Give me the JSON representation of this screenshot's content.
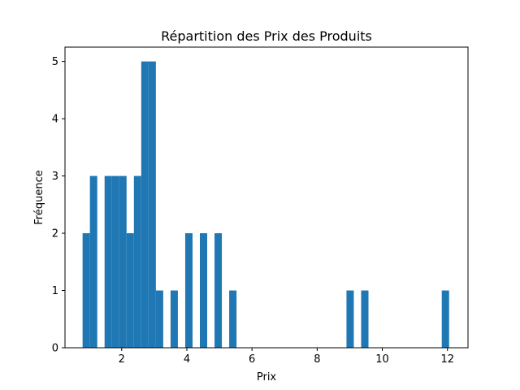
{
  "chart_data": {
    "type": "bar",
    "title": "Répartition des Prix des Produits",
    "xlabel": "Prix",
    "ylabel": "Fréquence",
    "xlim": [
      0.26,
      12.63
    ],
    "ylim": [
      0,
      5.25
    ],
    "x_ticks": [
      2,
      4,
      6,
      8,
      10,
      12
    ],
    "y_ticks": [
      0,
      1,
      2,
      3,
      4,
      5
    ],
    "bin_width": 0.225,
    "bar_color": "#1f77b4",
    "grid": false,
    "bins": [
      {
        "x": 0.8,
        "count": 2
      },
      {
        "x": 1.025,
        "count": 3
      },
      {
        "x": 1.25,
        "count": 0
      },
      {
        "x": 1.475,
        "count": 3
      },
      {
        "x": 1.7,
        "count": 3
      },
      {
        "x": 1.925,
        "count": 3
      },
      {
        "x": 2.15,
        "count": 2
      },
      {
        "x": 2.375,
        "count": 3
      },
      {
        "x": 2.6,
        "count": 5
      },
      {
        "x": 2.825,
        "count": 5
      },
      {
        "x": 3.05,
        "count": 1
      },
      {
        "x": 3.275,
        "count": 0
      },
      {
        "x": 3.5,
        "count": 1
      },
      {
        "x": 3.725,
        "count": 0
      },
      {
        "x": 3.95,
        "count": 2
      },
      {
        "x": 4.175,
        "count": 0
      },
      {
        "x": 4.4,
        "count": 2
      },
      {
        "x": 4.625,
        "count": 0
      },
      {
        "x": 4.85,
        "count": 2
      },
      {
        "x": 5.075,
        "count": 0
      },
      {
        "x": 5.3,
        "count": 1
      },
      {
        "x": 8.9,
        "count": 1
      },
      {
        "x": 9.35,
        "count": 1
      },
      {
        "x": 11.825,
        "count": 1
      }
    ]
  }
}
